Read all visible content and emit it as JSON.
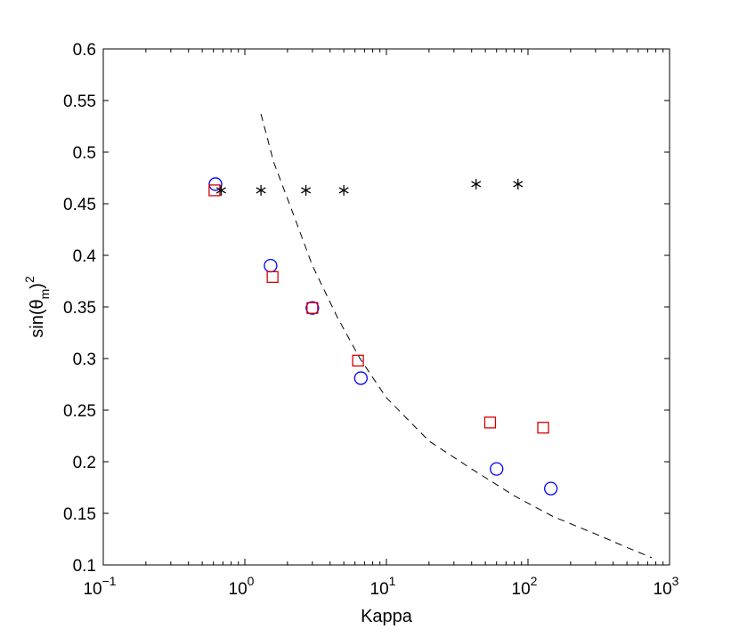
{
  "chart_data": {
    "type": "scatter",
    "xscale": "log",
    "xlim": [
      0.1,
      1000
    ],
    "ylim": [
      0.1,
      0.6
    ],
    "xlabel": "Kappa",
    "ylabel": {
      "base": "sin(θ",
      "sub": "m",
      "close": ")",
      "sup": "2"
    },
    "x_ticks": [
      {
        "value": 0.1,
        "base": "10",
        "exp": "−1"
      },
      {
        "value": 1,
        "base": "10",
        "exp": "0"
      },
      {
        "value": 10,
        "base": "10",
        "exp": "1"
      },
      {
        "value": 100,
        "base": "10",
        "exp": "2"
      },
      {
        "value": 1000,
        "base": "10",
        "exp": "3"
      }
    ],
    "y_ticks": [
      {
        "value": 0.1,
        "label": "0.1"
      },
      {
        "value": 0.15,
        "label": "0.15"
      },
      {
        "value": 0.2,
        "label": "0.2"
      },
      {
        "value": 0.25,
        "label": "0.25"
      },
      {
        "value": 0.3,
        "label": "0.3"
      },
      {
        "value": 0.35,
        "label": "0.35"
      },
      {
        "value": 0.4,
        "label": "0.4"
      },
      {
        "value": 0.45,
        "label": "0.45"
      },
      {
        "value": 0.5,
        "label": "0.5"
      },
      {
        "value": 0.55,
        "label": "0.55"
      },
      {
        "value": 0.6,
        "label": "0.6"
      }
    ],
    "grid": false,
    "legend": "none",
    "series": [
      {
        "marker": "circle",
        "color": "#0000ff",
        "points": [
          [
            0.62,
            0.469
          ],
          [
            1.52,
            0.39
          ],
          [
            3.0,
            0.349
          ],
          [
            6.6,
            0.281
          ],
          [
            60,
            0.193
          ],
          [
            145,
            0.174
          ]
        ]
      },
      {
        "marker": "square",
        "color": "#d40000",
        "points": [
          [
            0.61,
            0.463
          ],
          [
            1.57,
            0.379
          ],
          [
            3.0,
            0.349
          ],
          [
            6.3,
            0.298
          ],
          [
            54,
            0.238
          ],
          [
            128,
            0.233
          ]
        ]
      },
      {
        "marker": "asterisk",
        "color": "#000000",
        "points": [
          [
            0.68,
            0.463
          ],
          [
            1.3,
            0.463
          ],
          [
            2.7,
            0.463
          ],
          [
            5.0,
            0.463
          ],
          [
            43,
            0.469
          ],
          [
            85,
            0.469
          ]
        ]
      },
      {
        "marker": "dashed-line",
        "color": "#000000",
        "points": [
          [
            1.3,
            0.537
          ],
          [
            1.6,
            0.49
          ],
          [
            2.2,
            0.44
          ],
          [
            3.0,
            0.39
          ],
          [
            4.5,
            0.34
          ],
          [
            6.5,
            0.3
          ],
          [
            10,
            0.262
          ],
          [
            20,
            0.22
          ],
          [
            40,
            0.193
          ],
          [
            80,
            0.167
          ],
          [
            150,
            0.147
          ],
          [
            300,
            0.13
          ],
          [
            500,
            0.117
          ],
          [
            750,
            0.107
          ]
        ]
      }
    ]
  }
}
